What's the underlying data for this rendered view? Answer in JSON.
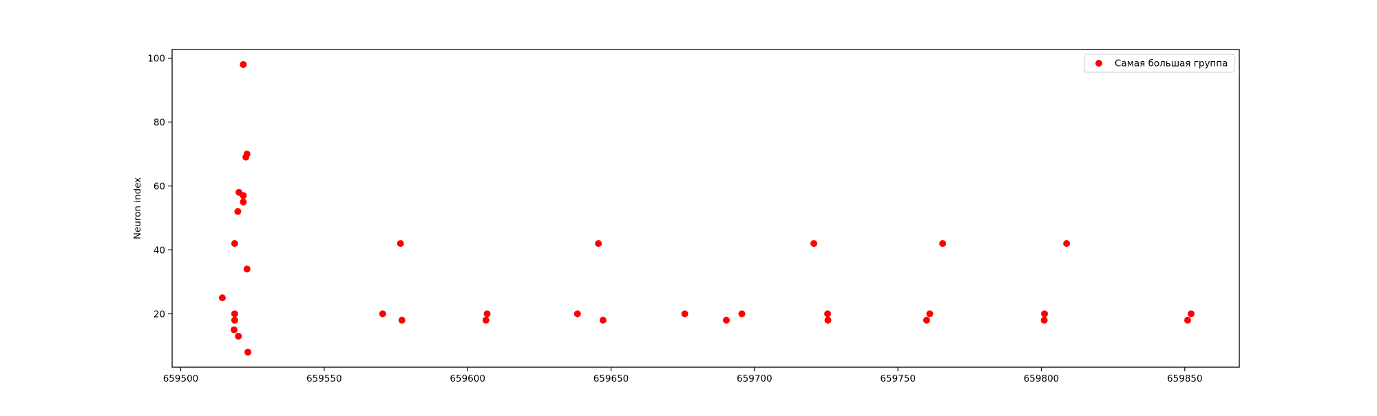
{
  "chart_data": {
    "type": "scatter",
    "title": "",
    "xlabel": "",
    "ylabel": "Neuron index",
    "xlim": [
      659497,
      659869
    ],
    "ylim": [
      3.3,
      102.7
    ],
    "xticks": [
      659500,
      659550,
      659600,
      659650,
      659700,
      659750,
      659800,
      659850
    ],
    "xtick_labels": [
      "659500",
      "659550",
      "659600",
      "659650",
      "659700",
      "659750",
      "659800",
      "659850"
    ],
    "yticks": [
      20,
      40,
      60,
      80,
      100
    ],
    "ytick_labels": [
      "20",
      "40",
      "60",
      "80",
      "100"
    ],
    "grid": false,
    "legend_position": "top-right",
    "series": [
      {
        "name": "Самая большая группа",
        "color": "#ff0000",
        "marker": "circle",
        "points": [
          {
            "x": 659514.5,
            "y": 25
          },
          {
            "x": 659518.8,
            "y": 42
          },
          {
            "x": 659518.8,
            "y": 20
          },
          {
            "x": 659518.8,
            "y": 18
          },
          {
            "x": 659518.6,
            "y": 15
          },
          {
            "x": 659519.9,
            "y": 52
          },
          {
            "x": 659520.3,
            "y": 58
          },
          {
            "x": 659520.1,
            "y": 13
          },
          {
            "x": 659521.8,
            "y": 98
          },
          {
            "x": 659521.8,
            "y": 57
          },
          {
            "x": 659521.8,
            "y": 55
          },
          {
            "x": 659522.7,
            "y": 69
          },
          {
            "x": 659523.1,
            "y": 70
          },
          {
            "x": 659523.1,
            "y": 34
          },
          {
            "x": 659523.4,
            "y": 8
          },
          {
            "x": 659570.4,
            "y": 20
          },
          {
            "x": 659576.6,
            "y": 42
          },
          {
            "x": 659577.1,
            "y": 18
          },
          {
            "x": 659606.4,
            "y": 18
          },
          {
            "x": 659606.8,
            "y": 20
          },
          {
            "x": 659638.3,
            "y": 20
          },
          {
            "x": 659645.6,
            "y": 42
          },
          {
            "x": 659647.2,
            "y": 18
          },
          {
            "x": 659675.7,
            "y": 20
          },
          {
            "x": 659690.2,
            "y": 18
          },
          {
            "x": 659695.6,
            "y": 20
          },
          {
            "x": 659720.7,
            "y": 42
          },
          {
            "x": 659725.5,
            "y": 20
          },
          {
            "x": 659725.6,
            "y": 18
          },
          {
            "x": 659760.0,
            "y": 18
          },
          {
            "x": 659761.1,
            "y": 20
          },
          {
            "x": 659765.6,
            "y": 42
          },
          {
            "x": 659801.1,
            "y": 20
          },
          {
            "x": 659801.0,
            "y": 18
          },
          {
            "x": 659808.8,
            "y": 42
          },
          {
            "x": 659851.0,
            "y": 18
          },
          {
            "x": 659852.2,
            "y": 20
          }
        ]
      }
    ]
  }
}
